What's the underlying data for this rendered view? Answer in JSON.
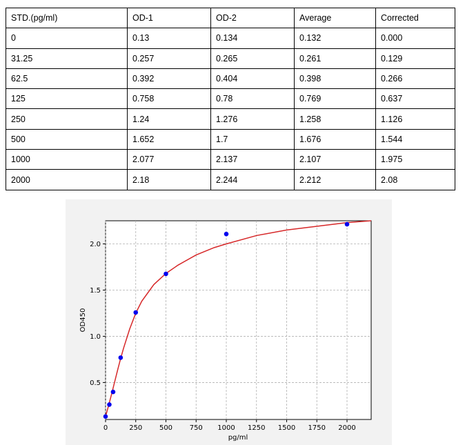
{
  "table": {
    "headers": [
      "STD.(pg/ml)",
      "OD-1",
      "OD-2",
      "Average",
      "Corrected"
    ],
    "rows": [
      [
        "0",
        "0.13",
        "0.134",
        "0.132",
        "0.000"
      ],
      [
        "31.25",
        "0.257",
        "0.265",
        "0.261",
        "0.129"
      ],
      [
        "62.5",
        "0.392",
        "0.404",
        "0.398",
        "0.266"
      ],
      [
        "125",
        "0.758",
        "0.78",
        "0.769",
        "0.637"
      ],
      [
        "250",
        "1.24",
        "1.276",
        "1.258",
        "1.126"
      ],
      [
        "500",
        "1.652",
        "1.7",
        "1.676",
        "1.544"
      ],
      [
        "1000",
        "2.077",
        "2.137",
        "2.107",
        "1.975"
      ],
      [
        "2000",
        "2.18",
        "2.244",
        "2.212",
        "2.08"
      ]
    ]
  },
  "chart_data": {
    "type": "scatter",
    "xlabel": "pg/ml",
    "ylabel": "OD450",
    "xlim": [
      0,
      2200
    ],
    "ylim": [
      0.1,
      2.25
    ],
    "xticks": [
      0,
      250,
      500,
      750,
      1000,
      1250,
      1500,
      1750,
      2000
    ],
    "yticks": [
      0.5,
      1.0,
      1.5,
      2.0
    ],
    "xtick_labels": [
      "0",
      "250",
      "500",
      "750",
      "1000",
      "1250",
      "1500",
      "1750",
      "2000"
    ],
    "ytick_labels": [
      "0.5",
      "1.0",
      "1.5",
      "2.0"
    ],
    "grid": true,
    "series": [
      {
        "kind": "points",
        "x": [
          0,
          31.25,
          62.5,
          125,
          250,
          500,
          1000,
          2000
        ],
        "y": [
          0.132,
          0.261,
          0.398,
          0.769,
          1.258,
          1.676,
          2.107,
          2.212
        ],
        "color": "#0000ee"
      },
      {
        "kind": "fit-curve",
        "x": [
          0,
          25,
          50,
          75,
          100,
          125,
          150,
          200,
          250,
          300,
          400,
          500,
          600,
          750,
          900,
          1000,
          1250,
          1500,
          1750,
          2000,
          2200
        ],
        "y": [
          0.132,
          0.25,
          0.375,
          0.505,
          0.635,
          0.76,
          0.875,
          1.08,
          1.25,
          1.38,
          1.56,
          1.68,
          1.77,
          1.88,
          1.96,
          2.0,
          2.09,
          2.15,
          2.19,
          2.23,
          2.25
        ],
        "color": "#d62728"
      }
    ]
  }
}
